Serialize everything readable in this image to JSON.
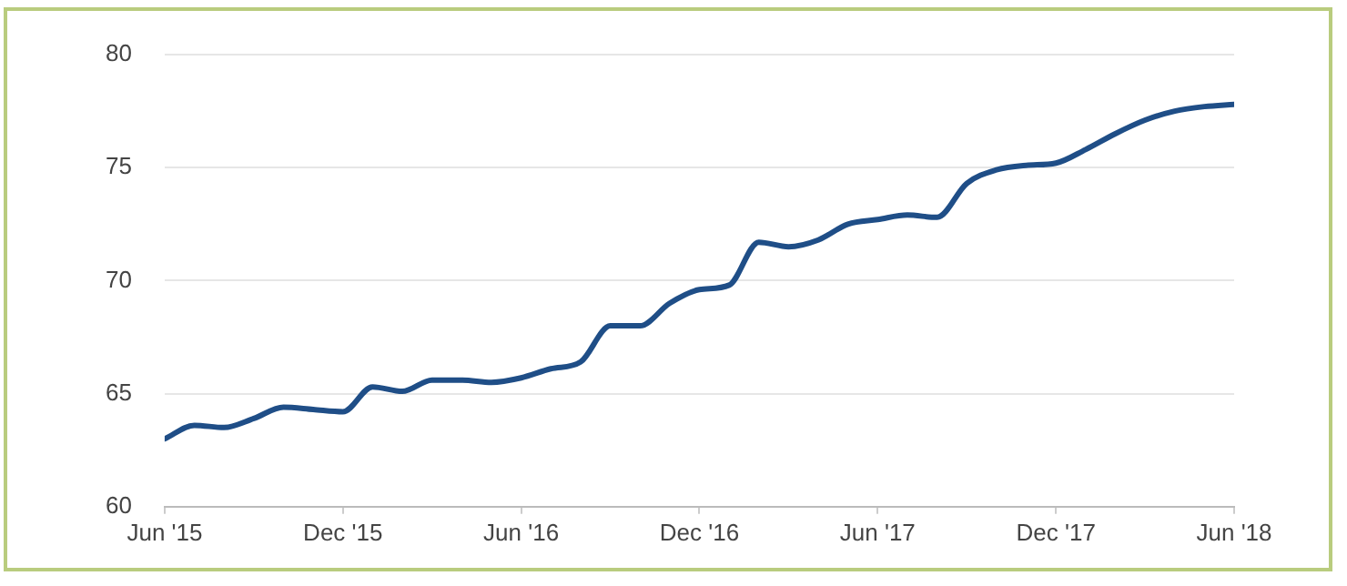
{
  "chart_data": {
    "type": "line",
    "x": [
      "2015-06",
      "2015-07",
      "2015-08",
      "2015-09",
      "2015-10",
      "2015-11",
      "2015-12",
      "2016-01",
      "2016-02",
      "2016-03",
      "2016-04",
      "2016-05",
      "2016-06",
      "2016-07",
      "2016-08",
      "2016-09",
      "2016-10",
      "2016-11",
      "2016-12",
      "2017-01",
      "2017-02",
      "2017-03",
      "2017-04",
      "2017-05",
      "2017-06",
      "2017-07",
      "2017-08",
      "2017-09",
      "2017-10",
      "2017-11",
      "2017-12",
      "2018-01",
      "2018-02",
      "2018-03",
      "2018-04",
      "2018-05",
      "2018-06"
    ],
    "series": [
      {
        "color": "#1f4e87",
        "values": [
          63.0,
          63.6,
          63.5,
          63.9,
          64.4,
          64.3,
          64.2,
          65.3,
          65.1,
          65.6,
          65.6,
          65.5,
          65.7,
          66.1,
          66.4,
          68.0,
          68.0,
          69.0,
          69.6,
          69.8,
          71.7,
          71.5,
          71.8,
          72.5,
          72.7,
          72.9,
          72.8,
          74.3,
          74.9,
          75.1,
          75.2,
          75.8,
          76.5,
          77.1,
          77.5,
          77.7,
          77.8
        ]
      }
    ],
    "xlim": [
      "2015-06",
      "2018-06"
    ],
    "xticks": [
      {
        "value": "2015-06",
        "label": "Jun '15"
      },
      {
        "value": "2015-12",
        "label": "Dec '15"
      },
      {
        "value": "2016-06",
        "label": "Jun '16"
      },
      {
        "value": "2016-12",
        "label": "Dec '16"
      },
      {
        "value": "2017-06",
        "label": "Jun '17"
      },
      {
        "value": "2017-12",
        "label": "Dec '17"
      },
      {
        "value": "2018-06",
        "label": "Jun '18"
      }
    ],
    "ylim": [
      60,
      80
    ],
    "yticks": [
      60,
      65,
      70,
      75,
      80
    ],
    "grid": "y",
    "legend": false,
    "marker": "none",
    "line_style": "solid"
  }
}
